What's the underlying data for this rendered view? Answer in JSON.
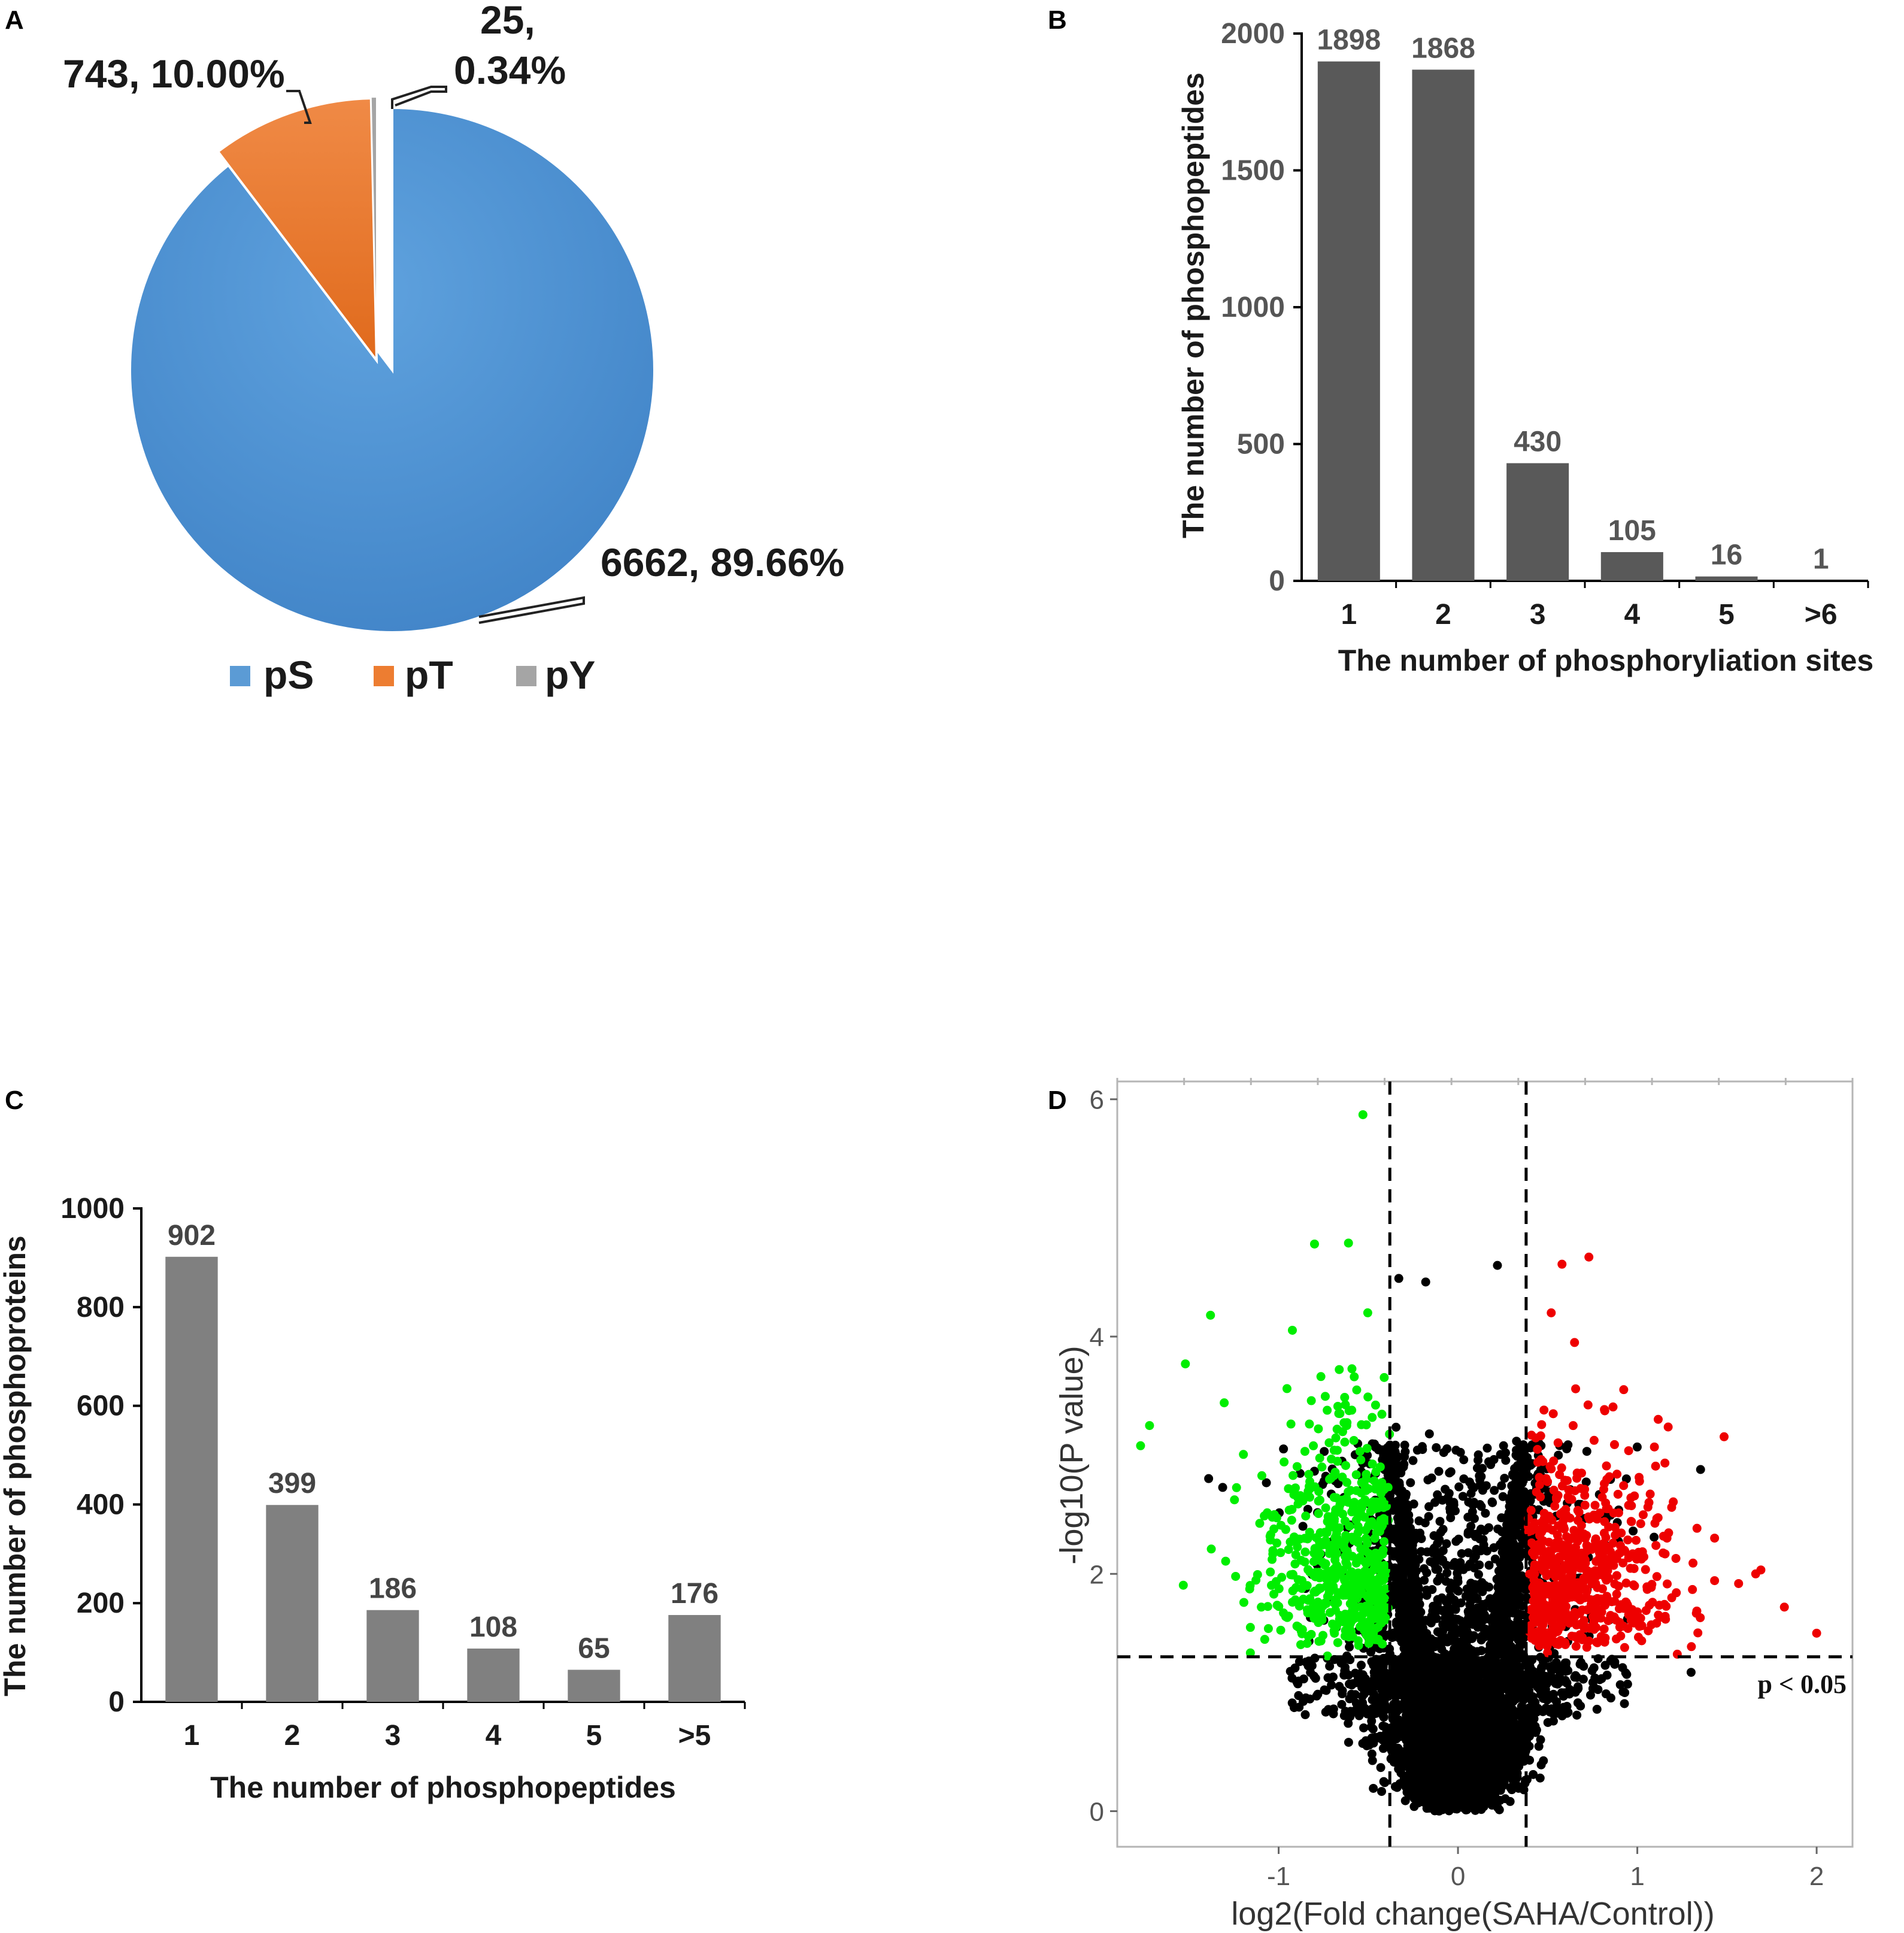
{
  "panels": {
    "a": {
      "letter": "A"
    },
    "b": {
      "letter": "B"
    },
    "c": {
      "letter": "C"
    },
    "d": {
      "letter": "D"
    }
  },
  "colors": {
    "pS": "#5b9bd5",
    "pS_dark": "#4a89c8",
    "pT": "#ed7d31",
    "pY": "#a5a5a5",
    "bar_b": "#595959",
    "bar_c": "#808080",
    "green": "#00ee00",
    "red": "#ee0000",
    "black": "#000000"
  },
  "chart_data": [
    {
      "id": "A",
      "type": "pie",
      "title": "",
      "slices": [
        {
          "name": "pS",
          "value": 6662,
          "percent": 89.66,
          "label": "6662, 89.66%"
        },
        {
          "name": "pT",
          "value": 743,
          "percent": 10.0,
          "label": "743, 10.00%"
        },
        {
          "name": "pY",
          "value": 25,
          "percent": 0.34,
          "label_line1": "25,",
          "label_line2": "0.34%"
        }
      ],
      "legend": [
        "pS",
        "pT",
        "pY"
      ],
      "legend_position": "bottom"
    },
    {
      "id": "B",
      "type": "bar",
      "categories": [
        "1",
        "2",
        "3",
        "4",
        "5",
        ">6"
      ],
      "values": [
        1898,
        1868,
        430,
        105,
        16,
        1
      ],
      "data_labels": [
        "1898",
        "1868",
        "430",
        "105",
        "16",
        "1"
      ],
      "xlabel": "The number of phosphoryliation sites",
      "ylabel": "The number of phosphopeptides",
      "ylim": [
        0,
        2000
      ],
      "yticks": [
        "0",
        "500",
        "1000",
        "1500",
        "2000"
      ]
    },
    {
      "id": "C",
      "type": "bar",
      "categories": [
        "1",
        "2",
        "3",
        "4",
        "5",
        ">5"
      ],
      "values": [
        902,
        399,
        186,
        108,
        65,
        176
      ],
      "data_labels": [
        "902",
        "399",
        "186",
        "108",
        "65",
        "176"
      ],
      "xlabel": "The number of phosphopeptides",
      "ylabel": "The number of phosphoproteins",
      "ylim": [
        0,
        1000
      ],
      "yticks": [
        "0",
        "200",
        "400",
        "600",
        "800",
        "1000"
      ]
    },
    {
      "id": "D",
      "type": "scatter",
      "title": "",
      "xlabel": "log2(Fold change(SAHA/Control))",
      "ylabel": "-log10(P value)",
      "xlim": [
        -1.9,
        2.2
      ],
      "ylim": [
        -0.3,
        6.15
      ],
      "xticks": [
        "-1",
        "0",
        "1",
        "2"
      ],
      "xtick_values": [
        -1,
        0,
        1,
        2
      ],
      "yticks": [
        "0",
        "2",
        "4",
        "6"
      ],
      "ytick_values": [
        0,
        2,
        4,
        6
      ],
      "fold_change_thresholds": [
        -0.38,
        0.38
      ],
      "p_threshold": 1.301,
      "threshold_label": "p < 0.05",
      "groups": [
        {
          "name": "down",
          "color": "green"
        },
        {
          "name": "not significant",
          "color": "black"
        },
        {
          "name": "up",
          "color": "red"
        }
      ],
      "highlight_points": [
        {
          "x": -0.53,
          "y": 5.87,
          "group": "down"
        },
        {
          "x": -0.8,
          "y": 4.78,
          "group": "down"
        },
        {
          "x": -1.38,
          "y": 4.18,
          "group": "down"
        },
        {
          "x": -1.72,
          "y": 3.25,
          "group": "down"
        },
        {
          "x": -1.77,
          "y": 3.08,
          "group": "down"
        },
        {
          "x": -1.52,
          "y": 3.77,
          "group": "down"
        },
        {
          "x": 0.73,
          "y": 4.67,
          "group": "up"
        },
        {
          "x": 0.58,
          "y": 4.61,
          "group": "up"
        },
        {
          "x": 0.52,
          "y": 4.2,
          "group": "up"
        },
        {
          "x": 0.65,
          "y": 3.95,
          "group": "up"
        },
        {
          "x": 2.0,
          "y": 1.5,
          "group": "up"
        },
        {
          "x": 1.82,
          "y": 1.72,
          "group": "up"
        },
        {
          "x": 1.66,
          "y": 2.0,
          "group": "up"
        },
        {
          "x": 0.22,
          "y": 4.6,
          "group": "not significant"
        },
        {
          "x": -0.33,
          "y": 4.49,
          "group": "not significant"
        },
        {
          "x": -0.18,
          "y": 4.46,
          "group": "not significant"
        },
        {
          "x": 1.3,
          "y": 1.17,
          "group": "not significant"
        }
      ]
    }
  ]
}
